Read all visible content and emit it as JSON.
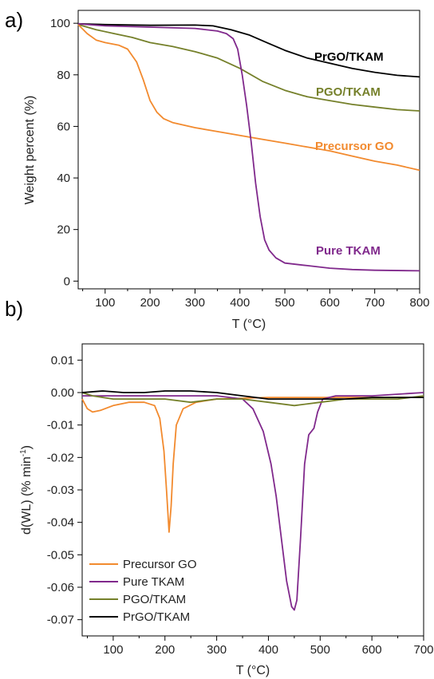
{
  "chart_data": [
    {
      "panel": "a)",
      "type": "line",
      "xlabel": "T (°C)",
      "ylabel": "Weight percent (%)",
      "xlim": [
        40,
        800
      ],
      "ylim": [
        -3,
        105
      ],
      "xticks": [
        100,
        200,
        300,
        400,
        500,
        600,
        700,
        800
      ],
      "yticks": [
        0,
        20,
        40,
        60,
        80,
        100
      ],
      "legend": "inline labels",
      "series": [
        {
          "name": "PrGO/TKAM",
          "color": "#000000",
          "points": [
            [
              40,
              99.8
            ],
            [
              100,
              99.5
            ],
            [
              200,
              99.2
            ],
            [
              300,
              99.3
            ],
            [
              340,
              99
            ],
            [
              380,
              97.5
            ],
            [
              420,
              95.5
            ],
            [
              460,
              92.5
            ],
            [
              500,
              89.5
            ],
            [
              550,
              86.5
            ],
            [
              600,
              84.5
            ],
            [
              650,
              82.5
            ],
            [
              700,
              81
            ],
            [
              750,
              79.8
            ],
            [
              800,
              79.2
            ]
          ]
        },
        {
          "name": "PGO/TKAM",
          "color": "#75802a",
          "points": [
            [
              40,
              99.5
            ],
            [
              80,
              97.5
            ],
            [
              120,
              96
            ],
            [
              160,
              94.5
            ],
            [
              200,
              92.5
            ],
            [
              250,
              91
            ],
            [
              300,
              89
            ],
            [
              350,
              86.5
            ],
            [
              400,
              82.5
            ],
            [
              450,
              77.5
            ],
            [
              500,
              74
            ],
            [
              550,
              71.5
            ],
            [
              600,
              70
            ],
            [
              650,
              68.5
            ],
            [
              700,
              67.5
            ],
            [
              750,
              66.5
            ],
            [
              800,
              66
            ]
          ]
        },
        {
          "name": "Precursor GO",
          "color": "#f28a2e",
          "points": [
            [
              40,
              99.5
            ],
            [
              60,
              96
            ],
            [
              80,
              93.5
            ],
            [
              100,
              92.5
            ],
            [
              130,
              91.5
            ],
            [
              150,
              90
            ],
            [
              170,
              85
            ],
            [
              185,
              78
            ],
            [
              200,
              70
            ],
            [
              215,
              65.5
            ],
            [
              230,
              63
            ],
            [
              250,
              61.5
            ],
            [
              300,
              59.5
            ],
            [
              350,
              58
            ],
            [
              400,
              56.5
            ],
            [
              450,
              55
            ],
            [
              500,
              53.5
            ],
            [
              550,
              52
            ],
            [
              600,
              50.5
            ],
            [
              650,
              48.5
            ],
            [
              700,
              46.5
            ],
            [
              750,
              45
            ],
            [
              800,
              43
            ]
          ]
        },
        {
          "name": "Pure TKAM",
          "color": "#80298c",
          "points": [
            [
              40,
              99.8
            ],
            [
              100,
              99
            ],
            [
              200,
              98.5
            ],
            [
              300,
              98
            ],
            [
              350,
              97
            ],
            [
              370,
              96
            ],
            [
              385,
              94
            ],
            [
              395,
              90
            ],
            [
              405,
              80
            ],
            [
              415,
              68
            ],
            [
              425,
              54
            ],
            [
              435,
              38
            ],
            [
              445,
              25
            ],
            [
              455,
              16
            ],
            [
              465,
              12
            ],
            [
              480,
              9
            ],
            [
              500,
              7
            ],
            [
              550,
              6
            ],
            [
              600,
              5
            ],
            [
              650,
              4.5
            ],
            [
              700,
              4.2
            ],
            [
              800,
              4
            ]
          ]
        }
      ],
      "annotations": [
        "PrGO/TKAM",
        "PGO/TKAM",
        "Precursor GO",
        "Pure TKAM"
      ]
    },
    {
      "panel": "b)",
      "type": "line",
      "xlabel": "T (°C)",
      "ylabel_main": "d(WL) (% min",
      "ylabel_sup": "-1",
      "ylabel_end": ")",
      "xlim": [
        40,
        700
      ],
      "ylim": [
        -0.075,
        0.015
      ],
      "xticks": [
        100,
        200,
        300,
        400,
        500,
        600,
        700
      ],
      "yticks": [
        "0.01",
        "0.00",
        "-0.01",
        "-0.02",
        "-0.03",
        "-0.04",
        "-0.05",
        "-0.06",
        "-0.07"
      ],
      "ytick_values": [
        0.01,
        0.0,
        -0.01,
        -0.02,
        -0.03,
        -0.04,
        -0.05,
        -0.06,
        -0.07
      ],
      "legend": "bottom-left",
      "series": [
        {
          "name": "Precursor GO",
          "color": "#f28a2e",
          "points": [
            [
              40,
              -0.002
            ],
            [
              50,
              -0.005
            ],
            [
              60,
              -0.006
            ],
            [
              75,
              -0.0055
            ],
            [
              100,
              -0.004
            ],
            [
              130,
              -0.003
            ],
            [
              160,
              -0.003
            ],
            [
              180,
              -0.004
            ],
            [
              190,
              -0.008
            ],
            [
              198,
              -0.018
            ],
            [
              203,
              -0.03
            ],
            [
              208,
              -0.043
            ],
            [
              212,
              -0.035
            ],
            [
              216,
              -0.022
            ],
            [
              222,
              -0.01
            ],
            [
              235,
              -0.005
            ],
            [
              260,
              -0.003
            ],
            [
              300,
              -0.002
            ],
            [
              400,
              -0.0015
            ],
            [
              500,
              -0.0015
            ],
            [
              600,
              -0.0015
            ],
            [
              700,
              -0.0015
            ]
          ]
        },
        {
          "name": "Pure TKAM",
          "color": "#80298c",
          "points": [
            [
              40,
              -0.001
            ],
            [
              100,
              -0.001
            ],
            [
              200,
              -0.001
            ],
            [
              300,
              -0.001
            ],
            [
              350,
              -0.002
            ],
            [
              370,
              -0.005
            ],
            [
              390,
              -0.012
            ],
            [
              405,
              -0.022
            ],
            [
              415,
              -0.032
            ],
            [
              425,
              -0.045
            ],
            [
              435,
              -0.058
            ],
            [
              445,
              -0.066
            ],
            [
              450,
              -0.067
            ],
            [
              455,
              -0.064
            ],
            [
              462,
              -0.045
            ],
            [
              470,
              -0.022
            ],
            [
              478,
              -0.013
            ],
            [
              488,
              -0.011
            ],
            [
              495,
              -0.006
            ],
            [
              505,
              -0.002
            ],
            [
              530,
              -0.001
            ],
            [
              600,
              -0.001
            ],
            [
              700,
              0.0
            ]
          ]
        },
        {
          "name": "PGO/TKAM",
          "color": "#75802a",
          "points": [
            [
              40,
              0.0
            ],
            [
              60,
              -0.001
            ],
            [
              100,
              -0.002
            ],
            [
              150,
              -0.002
            ],
            [
              200,
              -0.002
            ],
            [
              250,
              -0.003
            ],
            [
              300,
              -0.002
            ],
            [
              350,
              -0.002
            ],
            [
              400,
              -0.003
            ],
            [
              450,
              -0.004
            ],
            [
              500,
              -0.003
            ],
            [
              550,
              -0.002
            ],
            [
              600,
              -0.002
            ],
            [
              650,
              -0.002
            ],
            [
              700,
              -0.001
            ]
          ]
        },
        {
          "name": "PrGO/TKAM",
          "color": "#000000",
          "points": [
            [
              40,
              0.0
            ],
            [
              80,
              0.0005
            ],
            [
              120,
              0.0
            ],
            [
              160,
              0.0
            ],
            [
              200,
              0.0005
            ],
            [
              250,
              0.0005
            ],
            [
              300,
              0.0
            ],
            [
              350,
              -0.001
            ],
            [
              400,
              -0.002
            ],
            [
              450,
              -0.002
            ],
            [
              500,
              -0.002
            ],
            [
              550,
              -0.002
            ],
            [
              600,
              -0.0015
            ],
            [
              650,
              -0.0015
            ],
            [
              700,
              -0.0015
            ]
          ]
        }
      ]
    }
  ]
}
